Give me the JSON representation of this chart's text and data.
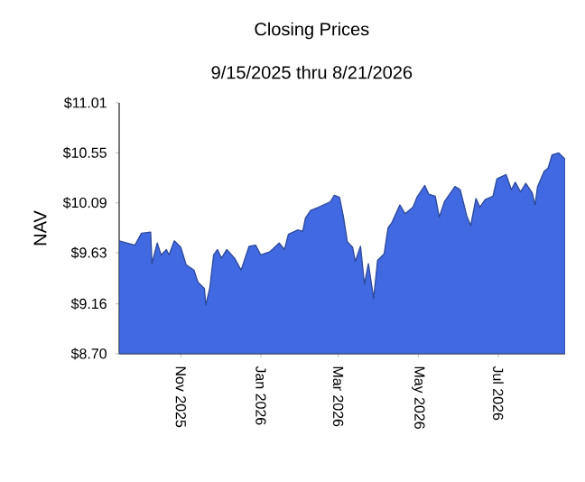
{
  "chart_data": {
    "type": "area",
    "title": "Closing Prices",
    "subtitle": "9/15/2025 thru 8/21/2026",
    "ylabel": "NAV",
    "x": [
      "2025-09-15",
      "2025-09-24",
      "2025-09-27",
      "2025-10-02",
      "2025-10-09",
      "2025-10-10",
      "2025-10-14",
      "2025-10-17",
      "2025-10-21",
      "2025-10-23",
      "2025-10-27",
      "2025-11-01",
      "2025-11-05",
      "2025-11-11",
      "2025-11-14",
      "2025-11-19",
      "2025-11-20",
      "2025-11-23",
      "2025-11-26",
      "2025-11-29",
      "2025-12-02",
      "2025-12-06",
      "2025-12-12",
      "2025-12-17",
      "2025-12-23",
      "2025-12-28",
      "2026-01-01",
      "2026-01-08",
      "2026-01-15",
      "2026-01-19",
      "2026-01-22",
      "2026-01-29",
      "2026-02-02",
      "2026-02-04",
      "2026-02-08",
      "2026-02-14",
      "2026-02-23",
      "2026-02-26",
      "2026-03-02",
      "2026-03-05",
      "2026-03-08",
      "2026-03-12",
      "2026-03-14",
      "2026-03-18",
      "2026-03-21",
      "2026-03-24",
      "2026-03-28",
      "2026-03-31",
      "2026-04-05",
      "2026-04-08",
      "2026-04-11",
      "2026-04-17",
      "2026-04-21",
      "2026-04-27",
      "2026-04-30",
      "2026-05-06",
      "2026-05-09",
      "2026-05-14",
      "2026-05-17",
      "2026-05-21",
      "2026-05-29",
      "2026-06-02",
      "2026-06-07",
      "2026-06-10",
      "2026-06-14",
      "2026-06-17",
      "2026-06-21",
      "2026-06-27",
      "2026-06-30",
      "2026-07-07",
      "2026-07-11",
      "2026-07-14",
      "2026-07-18",
      "2026-07-22",
      "2026-07-27",
      "2026-07-29",
      "2026-07-31",
      "2026-08-05",
      "2026-08-08",
      "2026-08-11",
      "2026-08-16",
      "2026-08-21"
    ],
    "series": [
      {
        "color": "#4169e1",
        "values": [
          9.74,
          9.71,
          9.7,
          9.81,
          9.82,
          9.53,
          9.72,
          9.61,
          9.66,
          9.61,
          9.74,
          9.68,
          9.52,
          9.47,
          9.36,
          9.3,
          9.15,
          9.3,
          9.61,
          9.66,
          9.58,
          9.66,
          9.58,
          9.47,
          9.69,
          9.7,
          9.61,
          9.64,
          9.72,
          9.66,
          9.8,
          9.84,
          9.83,
          9.95,
          10.02,
          10.05,
          10.1,
          10.16,
          10.14,
          9.96,
          9.73,
          9.68,
          9.55,
          9.69,
          9.34,
          9.53,
          9.21,
          9.56,
          9.62,
          9.86,
          9.91,
          10.07,
          9.99,
          10.05,
          10.14,
          10.25,
          10.17,
          10.15,
          9.96,
          10.1,
          10.24,
          10.21,
          9.97,
          9.88,
          10.13,
          10.05,
          10.12,
          10.15,
          10.31,
          10.35,
          10.21,
          10.28,
          10.19,
          10.27,
          10.18,
          10.07,
          10.24,
          10.38,
          10.41,
          10.53,
          10.55,
          10.49
        ]
      }
    ],
    "xlim": [
      "2025-09-15",
      "2026-08-21"
    ],
    "xticks": [
      {
        "value": "2025-11-01",
        "label": "Nov 2025"
      },
      {
        "value": "2026-01-01",
        "label": "Jan 2026"
      },
      {
        "value": "2026-03-01",
        "label": "Mar 2026"
      },
      {
        "value": "2026-05-01",
        "label": "May 2026"
      },
      {
        "value": "2026-07-01",
        "label": "Jul 2026"
      }
    ],
    "ylim": [
      8.7,
      11.01
    ],
    "yticks": [
      {
        "value": 8.7,
        "label": "$8.70"
      },
      {
        "value": 9.16,
        "label": "$9.16"
      },
      {
        "value": 9.63,
        "label": "$9.63"
      },
      {
        "value": 10.09,
        "label": "$10.09"
      },
      {
        "value": 10.55,
        "label": "$10.55"
      },
      {
        "value": 11.01,
        "label": "$11.01"
      }
    ]
  }
}
